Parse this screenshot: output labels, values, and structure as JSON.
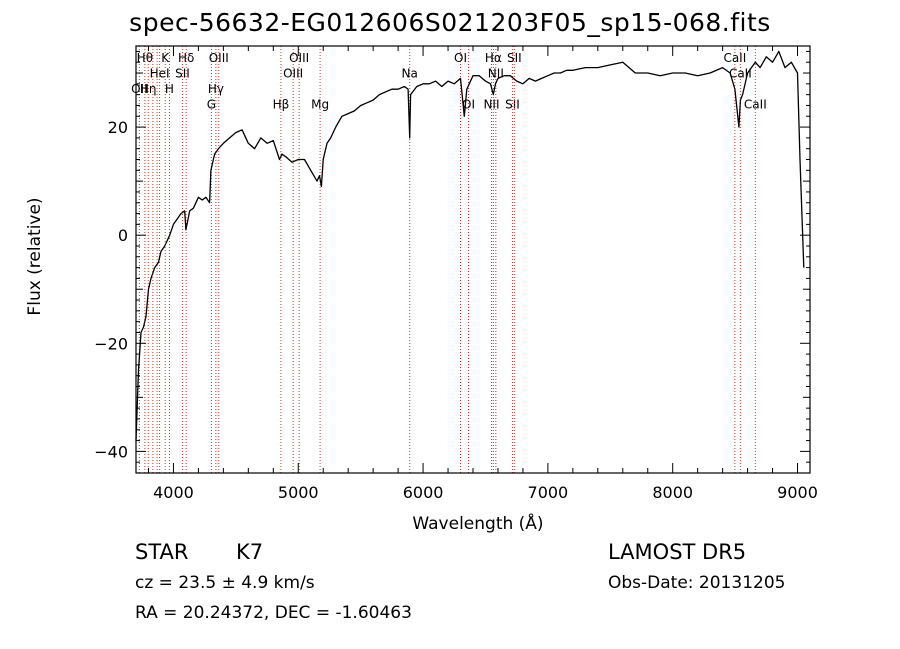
{
  "title": "spec-56632-EG012606S021203F05_sp15-068.fits",
  "info": {
    "class": "STAR",
    "subclass": "K7",
    "survey": "LAMOST DR5",
    "cz": "cz = 23.5 ± 4.9 km/s",
    "obs_date": "Obs-Date: 20131205",
    "coords": "RA =  20.24372, DEC =  -1.60463"
  },
  "colors": {
    "spectrum": "#000000",
    "line_marker": "#c0392b",
    "axes": "#000000"
  },
  "chart_data": {
    "type": "line",
    "title": "spec-56632-EG012606S021203F05_sp15-068.fits",
    "xlabel": "Wavelength (Å)",
    "ylabel": "Flux (relative)",
    "xlim": [
      3700,
      9100
    ],
    "ylim": [
      -44,
      35
    ],
    "xticks": [
      4000,
      5000,
      6000,
      7000,
      8000,
      9000
    ],
    "yticks": [
      -40,
      -20,
      0,
      20
    ],
    "grid": false,
    "series": [
      {
        "x": [
          3700,
          3720,
          3740,
          3760,
          3780,
          3800,
          3820,
          3850,
          3880,
          3900,
          3930,
          3950,
          3970,
          4000,
          4030,
          4060,
          4090,
          4100,
          4130,
          4160,
          4200,
          4230,
          4260,
          4290,
          4300,
          4330,
          4360,
          4400,
          4450,
          4500,
          4550,
          4600,
          4650,
          4700,
          4750,
          4800,
          4850,
          4870,
          4900,
          4950,
          5000,
          5050,
          5100,
          5150,
          5170,
          5185,
          5200,
          5230,
          5260,
          5300,
          5350,
          5400,
          5450,
          5500,
          5550,
          5600,
          5650,
          5700,
          5750,
          5800,
          5850,
          5880,
          5893,
          5900,
          5950,
          6000,
          6050,
          6100,
          6150,
          6200,
          6250,
          6300,
          6330,
          6350,
          6400,
          6450,
          6500,
          6540,
          6563,
          6580,
          6600,
          6650,
          6700,
          6750,
          6800,
          6850,
          6900,
          6950,
          7000,
          7050,
          7100,
          7150,
          7200,
          7300,
          7400,
          7500,
          7600,
          7700,
          7800,
          7900,
          8000,
          8100,
          8200,
          8300,
          8400,
          8460,
          8498,
          8530,
          8542,
          8560,
          8600,
          8662,
          8700,
          8750,
          8800,
          8850,
          8900,
          8950,
          9000,
          9020,
          9050
        ],
        "y": [
          -38,
          -25,
          -18,
          -17,
          -15,
          -10,
          -8,
          -6,
          -5,
          -3,
          -2,
          -1,
          0,
          2,
          3,
          4,
          4.5,
          1,
          4.5,
          5,
          7,
          6.5,
          7,
          6,
          12,
          15,
          16,
          17,
          18,
          19,
          19.5,
          17,
          16,
          18,
          17,
          17.5,
          14,
          15,
          14.5,
          13.5,
          14,
          14,
          12,
          10,
          11,
          9,
          14,
          17,
          18,
          20,
          22,
          22.5,
          23,
          24,
          24.5,
          25,
          26,
          26.5,
          27,
          27,
          27.5,
          27,
          18,
          26,
          27.5,
          28,
          28,
          28.5,
          27.5,
          28.5,
          28,
          29,
          22,
          27,
          29.5,
          29.5,
          28.5,
          28,
          26,
          28,
          29,
          29.5,
          29.5,
          28.5,
          28,
          29,
          28.5,
          29,
          29.5,
          30,
          30,
          30.5,
          30.5,
          31,
          31,
          31.5,
          32,
          30,
          30,
          29.5,
          30,
          30,
          29.5,
          30,
          31,
          30,
          27,
          20,
          25,
          26,
          30,
          32,
          31,
          33,
          32,
          34,
          31,
          32,
          30,
          14,
          -6
        ]
      }
    ],
    "lines": [
      {
        "wave": 3727,
        "label": "OII",
        "row": 3
      },
      {
        "wave": 3771,
        "label": "Hθ",
        "row": 1
      },
      {
        "wave": 3798,
        "label": "Hη",
        "row": 3
      },
      {
        "wave": 3835,
        "label": "",
        "row": 0
      },
      {
        "wave": 3869,
        "label": "",
        "row": 0
      },
      {
        "wave": 3889,
        "label": "HeI",
        "row": 2
      },
      {
        "wave": 3934,
        "label": "K",
        "row": 1
      },
      {
        "wave": 3968,
        "label": "H",
        "row": 3
      },
      {
        "wave": 4072,
        "label": "SII",
        "row": 2
      },
      {
        "wave": 4102,
        "label": "Hδ",
        "row": 1
      },
      {
        "wave": 4304,
        "label": "G",
        "row": 4
      },
      {
        "wave": 4340,
        "label": "Hγ",
        "row": 3
      },
      {
        "wave": 4363,
        "label": "OIII",
        "row": 1
      },
      {
        "wave": 4861,
        "label": "Hβ",
        "row": 4
      },
      {
        "wave": 4959,
        "label": "OIII",
        "row": 2
      },
      {
        "wave": 5007,
        "label": "OIII",
        "row": 1
      },
      {
        "wave": 5175,
        "label": "Mg",
        "row": 4
      },
      {
        "wave": 5893,
        "label": "Na",
        "row": 2
      },
      {
        "wave": 6300,
        "label": "OI",
        "row": 1
      },
      {
        "wave": 6364,
        "label": "OI",
        "row": 4
      },
      {
        "wave": 6548,
        "label": "NII",
        "row": 4
      },
      {
        "wave": 6563,
        "label": "Hα",
        "row": 1
      },
      {
        "wave": 6583,
        "label": "NII",
        "row": 2
      },
      {
        "wave": 6716,
        "label": "SII",
        "row": 4
      },
      {
        "wave": 6731,
        "label": "SII",
        "row": 1
      },
      {
        "wave": 8498,
        "label": "CaII",
        "row": 1
      },
      {
        "wave": 8542,
        "label": "CaII",
        "row": 2
      },
      {
        "wave": 8662,
        "label": "CaII",
        "row": 4
      }
    ]
  }
}
